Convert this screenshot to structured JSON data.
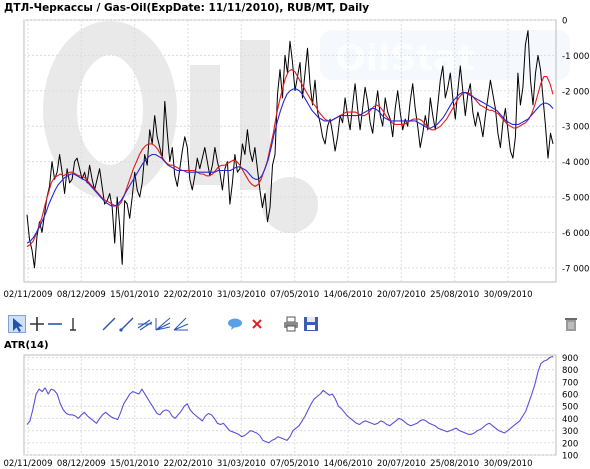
{
  "watermark": {
    "logo_text": "OilStat"
  },
  "toolbar": {
    "tools": [
      {
        "name": "pointer-icon"
      },
      {
        "name": "crosshair-icon"
      },
      {
        "name": "horizontal-line-icon"
      },
      {
        "name": "vertical-line-icon"
      },
      {
        "name": "trend-line-icon"
      },
      {
        "name": "ray-line-icon"
      },
      {
        "name": "parallel-channel-icon"
      },
      {
        "name": "fibonacci-fan-icon"
      },
      {
        "name": "angle-lines-icon"
      },
      {
        "name": "comment-bubble-icon"
      },
      {
        "name": "delete-object-icon"
      },
      {
        "name": "print-icon"
      },
      {
        "name": "save-icon"
      },
      {
        "name": "clear-all-icon"
      }
    ]
  },
  "colors": {
    "price": "#000000",
    "ma_fast": "#e41b1b",
    "ma_slow": "#2727d6",
    "atr": "#5a50dc",
    "grid": "#dcdcdc",
    "axis_text": "#000000"
  },
  "chart_data": [
    {
      "type": "line",
      "title": "ДТЛ-Черкассы / Gas-Oil(ExpDate: 11/11/2010), RUB/MT, Daily",
      "x_tick_labels": [
        "02/11/2009",
        "08/12/2009",
        "15/01/2010",
        "22/02/2010",
        "31/03/2010",
        "07/05/2010",
        "14/06/2010",
        "20/07/2010",
        "25/08/2010",
        "30/09/2010"
      ],
      "y_tick_labels": [
        "0",
        "-1 000",
        "-2 000",
        "-3 000",
        "-4 000",
        "-5 000",
        "-6 000",
        "-7 000"
      ],
      "ylim": [
        -7400,
        0
      ],
      "grid": true,
      "y_axis_side": "right",
      "series": [
        {
          "role": "price",
          "values": [
            -5500,
            -6200,
            -6500,
            -7000,
            -6100,
            -5700,
            -6000,
            -5500,
            -5000,
            -4700,
            -4000,
            -4500,
            -4300,
            -3800,
            -4300,
            -4900,
            -4200,
            -4600,
            -4500,
            -4000,
            -3900,
            -4200,
            -4500,
            -4300,
            -4600,
            -4100,
            -4500,
            -4800,
            -4500,
            -4200,
            -4700,
            -5200,
            -5100,
            -4900,
            -5300,
            -6300,
            -5000,
            -5800,
            -6900,
            -5100,
            -5200,
            -5600,
            -5000,
            -4300,
            -4800,
            -5000,
            -4600,
            -3800,
            -4100,
            -3100,
            -3500,
            -2700,
            -3300,
            -3600,
            -3900,
            -2300,
            -3200,
            -4000,
            -3600,
            -4400,
            -4700,
            -4200,
            -3700,
            -3300,
            -3600,
            -4500,
            -4800,
            -4400,
            -3900,
            -4200,
            -3900,
            -3600,
            -4000,
            -4400,
            -4100,
            -3600,
            -4000,
            -4300,
            -4800,
            -4200,
            -4000,
            -5200,
            -4600,
            -3800,
            -4300,
            -4200,
            -3500,
            -3800,
            -3100,
            -3700,
            -4000,
            -3600,
            -4200,
            -4800,
            -5300,
            -4900,
            -5700,
            -5300,
            -4100,
            -3800,
            -2100,
            -1400,
            -2200,
            -1000,
            -1500,
            -600,
            -1200,
            -2000,
            -1600,
            -1200,
            -2200,
            -1500,
            -800,
            -1800,
            -2400,
            -1700,
            -2600,
            -2900,
            -3300,
            -3500,
            -3000,
            -2800,
            -3200,
            -3700,
            -3300,
            -2700,
            -2900,
            -2200,
            -2700,
            -3100,
            -2400,
            -1800,
            -2500,
            -3100,
            -2500,
            -1900,
            -2300,
            -2900,
            -3200,
            -2500,
            -2000,
            -2700,
            -3000,
            -2200,
            -2600,
            -2800,
            -3300,
            -2500,
            -2000,
            -2600,
            -3100,
            -2800,
            -3000,
            -2300,
            -1800,
            -2500,
            -3000,
            -3600,
            -3200,
            -2700,
            -3100,
            -2200,
            -2700,
            -3100,
            -2400,
            -1700,
            -1300,
            -2200,
            -1900,
            -1500,
            -2200,
            -2800,
            -2000,
            -1300,
            -2000,
            -2700,
            -2100,
            -1800,
            -2600,
            -3000,
            -2600,
            -2900,
            -3300,
            -2700,
            -2200,
            -1700,
            -2100,
            -2500,
            -3200,
            -3600,
            -2900,
            -2500,
            -3100,
            -3700,
            -3900,
            -3300,
            -1500,
            -2400,
            -1900,
            -700,
            -300,
            -1700,
            -2400,
            -1500,
            -1000,
            -1400,
            -2200,
            -3000,
            -3900,
            -3200,
            -3500
          ]
        },
        {
          "role": "moving-average-fast",
          "values": [
            -6400,
            -6350,
            -6250,
            -6050,
            -5800,
            -5550,
            -5200,
            -4900,
            -4600,
            -4450,
            -4400,
            -4350,
            -4400,
            -4350,
            -4300,
            -4300,
            -4350,
            -4400,
            -4400,
            -4450,
            -4550,
            -4650,
            -4750,
            -4850,
            -4950,
            -5050,
            -5100,
            -5150,
            -5200,
            -5250,
            -5250,
            -5150,
            -4950,
            -4700,
            -4450,
            -4200,
            -4000,
            -3800,
            -3650,
            -3550,
            -3500,
            -3500,
            -3550,
            -3650,
            -3800,
            -3950,
            -4050,
            -4100,
            -4100,
            -4150,
            -4200,
            -4250,
            -4250,
            -4250,
            -4250,
            -4250,
            -4300,
            -4350,
            -4350,
            -4400,
            -4400,
            -4350,
            -4250,
            -4150,
            -4100,
            -4100,
            -4050,
            -4000,
            -3950,
            -4000,
            -4100,
            -4250,
            -4400,
            -4550,
            -4650,
            -4700,
            -4650,
            -4500,
            -4250,
            -4000,
            -3600,
            -3200,
            -2700,
            -2300,
            -1950,
            -1650,
            -1450,
            -1400,
            -1450,
            -1600,
            -1750,
            -1900,
            -2050,
            -2200,
            -2350,
            -2450,
            -2600,
            -2700,
            -2800,
            -2850,
            -2850,
            -2800,
            -2750,
            -2700,
            -2650,
            -2600,
            -2600,
            -2600,
            -2600,
            -2650,
            -2700,
            -2700,
            -2650,
            -2550,
            -2450,
            -2400,
            -2450,
            -2550,
            -2700,
            -2800,
            -2900,
            -2950,
            -2950,
            -2950,
            -2950,
            -2900,
            -2850,
            -2800,
            -2800,
            -2800,
            -2850,
            -2950,
            -3050,
            -3100,
            -3100,
            -3050,
            -3000,
            -2900,
            -2800,
            -2650,
            -2500,
            -2350,
            -2200,
            -2100,
            -2050,
            -2050,
            -2100,
            -2200,
            -2300,
            -2400,
            -2450,
            -2500,
            -2550,
            -2550,
            -2600,
            -2650,
            -2750,
            -2850,
            -2950,
            -3000,
            -3050,
            -3050,
            -3000,
            -2950,
            -2900,
            -2800,
            -2650,
            -2400,
            -2100,
            -1800,
            -1600,
            -1600,
            -1800,
            -2100
          ]
        },
        {
          "role": "moving-average-slow",
          "values": [
            -6300,
            -6250,
            -6150,
            -6000,
            -5850,
            -5650,
            -5450,
            -5200,
            -5000,
            -4800,
            -4650,
            -4550,
            -4450,
            -4400,
            -4350,
            -4350,
            -4400,
            -4450,
            -4500,
            -4550,
            -4650,
            -4750,
            -4850,
            -4950,
            -5050,
            -5150,
            -5200,
            -5250,
            -5250,
            -5200,
            -5100,
            -4950,
            -4800,
            -4650,
            -4500,
            -4350,
            -4200,
            -4050,
            -3950,
            -3850,
            -3800,
            -3800,
            -3850,
            -3900,
            -4000,
            -4100,
            -4150,
            -4200,
            -4250,
            -4250,
            -4250,
            -4300,
            -4300,
            -4300,
            -4300,
            -4300,
            -4300,
            -4300,
            -4300,
            -4300,
            -4300,
            -4250,
            -4250,
            -4250,
            -4250,
            -4250,
            -4200,
            -4150,
            -4150,
            -4200,
            -4250,
            -4350,
            -4450,
            -4500,
            -4500,
            -4400,
            -4200,
            -3950,
            -3600,
            -3200,
            -2850,
            -2550,
            -2300,
            -2100,
            -2000,
            -1950,
            -1950,
            -2000,
            -2100,
            -2250,
            -2400,
            -2550,
            -2650,
            -2750,
            -2800,
            -2850,
            -2850,
            -2850,
            -2800,
            -2750,
            -2700,
            -2700,
            -2700,
            -2700,
            -2700,
            -2700,
            -2700,
            -2650,
            -2600,
            -2550,
            -2500,
            -2500,
            -2550,
            -2650,
            -2750,
            -2800,
            -2850,
            -2850,
            -2850,
            -2850,
            -2850,
            -2850,
            -2850,
            -2850,
            -2850,
            -2900,
            -2950,
            -3000,
            -3050,
            -3050,
            -3000,
            -2950,
            -2850,
            -2750,
            -2600,
            -2450,
            -2300,
            -2200,
            -2100,
            -2050,
            -2050,
            -2100,
            -2150,
            -2200,
            -2250,
            -2300,
            -2350,
            -2400,
            -2450,
            -2500,
            -2550,
            -2650,
            -2750,
            -2850,
            -2900,
            -2950,
            -2950,
            -2950,
            -2900,
            -2850,
            -2800,
            -2700,
            -2600,
            -2500,
            -2400,
            -2350,
            -2350,
            -2400,
            -2500
          ]
        }
      ]
    },
    {
      "type": "line",
      "title": "ATR(14)",
      "x_tick_labels": [
        "02/11/2009",
        "08/12/2009",
        "15/01/2010",
        "22/02/2010",
        "31/03/2010",
        "07/05/2010",
        "14/06/2010",
        "20/07/2010",
        "25/08/2010",
        "30/09/2010"
      ],
      "y_tick_labels": [
        "100",
        "200",
        "300",
        "400",
        "500",
        "600",
        "700",
        "800",
        "900"
      ],
      "ylim": [
        100,
        920
      ],
      "grid": true,
      "y_axis_side": "right",
      "series": [
        {
          "role": "atr",
          "values": [
            350,
            380,
            480,
            600,
            640,
            620,
            650,
            600,
            640,
            630,
            600,
            520,
            470,
            440,
            430,
            430,
            420,
            400,
            430,
            450,
            420,
            400,
            380,
            360,
            400,
            430,
            450,
            430,
            410,
            400,
            390,
            450,
            520,
            560,
            600,
            620,
            610,
            600,
            640,
            600,
            560,
            520,
            480,
            440,
            430,
            460,
            470,
            460,
            420,
            400,
            430,
            460,
            500,
            520,
            470,
            440,
            420,
            400,
            380,
            420,
            440,
            430,
            400,
            360,
            350,
            360,
            330,
            300,
            290,
            280,
            270,
            250,
            260,
            280,
            300,
            290,
            280,
            260,
            220,
            210,
            200,
            220,
            230,
            250,
            240,
            230,
            220,
            250,
            300,
            320,
            340,
            380,
            420,
            470,
            520,
            560,
            580,
            600,
            630,
            610,
            590,
            600,
            560,
            500,
            480,
            450,
            420,
            400,
            380,
            360,
            350,
            370,
            380,
            370,
            360,
            350,
            360,
            380,
            370,
            350,
            340,
            360,
            380,
            400,
            390,
            370,
            350,
            340,
            350,
            360,
            380,
            390,
            380,
            360,
            350,
            340,
            320,
            310,
            300,
            290,
            300,
            310,
            320,
            300,
            290,
            280,
            270,
            270,
            280,
            300,
            310,
            330,
            350,
            360,
            340,
            320,
            300,
            290,
            280,
            300,
            320,
            340,
            360,
            380,
            420,
            460,
            530,
            600,
            680,
            780,
            850,
            870,
            880,
            900,
            910
          ]
        }
      ]
    }
  ]
}
